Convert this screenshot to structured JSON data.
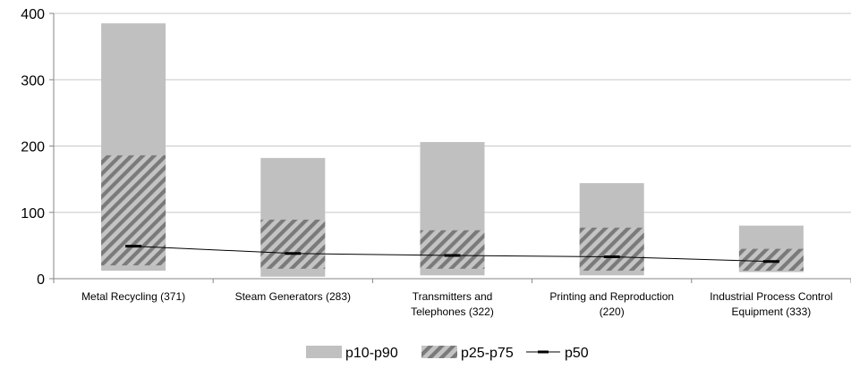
{
  "chart_data": {
    "type": "bar",
    "title": "",
    "xlabel": "",
    "ylabel": "",
    "ylim": [
      0,
      400
    ],
    "yticks": [
      "0",
      "100",
      "200",
      "300",
      "400"
    ],
    "grid": true,
    "legend_position": "bottom",
    "categories": [
      [
        "Metal Recycling (371)"
      ],
      [
        "Steam Generators (283)"
      ],
      [
        "Transmitters and",
        "Telephones (322)"
      ],
      [
        "Printing and Reproduction",
        "(220)"
      ],
      [
        "Industrial Process Control",
        "Equipment (333)"
      ]
    ],
    "series": [
      {
        "name": "p10-p90",
        "kind": "range",
        "color": "#c0c0c0",
        "low": [
          12,
          3,
          5,
          5,
          10
        ],
        "high": [
          385,
          182,
          206,
          144,
          80
        ]
      },
      {
        "name": "p25-p75",
        "kind": "range",
        "color": "#808080",
        "pattern": "diagonal-hatch",
        "low": [
          20,
          15,
          15,
          12,
          12
        ],
        "high": [
          186,
          89,
          73,
          77,
          45
        ]
      },
      {
        "name": "p50",
        "kind": "line",
        "color": "#000000",
        "values": [
          49,
          38,
          35,
          33,
          26
        ]
      }
    ]
  }
}
